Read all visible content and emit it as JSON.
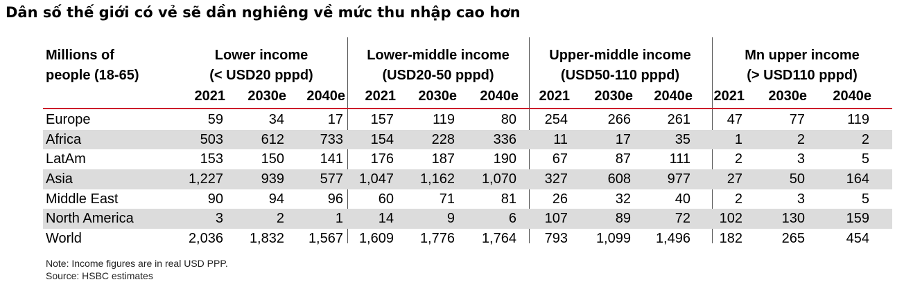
{
  "title": "Dân số thế giới có vẻ sẽ dần nghiêng về mức thu nhập cao hơn",
  "table": {
    "row_header": [
      "Millions of",
      "people (18-65)"
    ],
    "groups": [
      {
        "line1": "Lower income",
        "line2": "(< USD20 pppd)"
      },
      {
        "line1": "Lower-middle income",
        "line2": "(USD20-50 pppd)"
      },
      {
        "line1": "Upper-middle income",
        "line2": "(USD50-110 pppd)"
      },
      {
        "line1": "Mn upper income",
        "line2": "(> USD110 pppd)"
      }
    ],
    "years": [
      "2021",
      "2030e",
      "2040e"
    ],
    "rows": [
      {
        "label": "Europe",
        "values": [
          "59",
          "34",
          "17",
          "157",
          "119",
          "80",
          "254",
          "266",
          "261",
          "47",
          "77",
          "119"
        ]
      },
      {
        "label": "Africa",
        "values": [
          "503",
          "612",
          "733",
          "154",
          "228",
          "336",
          "11",
          "17",
          "35",
          "1",
          "2",
          "2"
        ]
      },
      {
        "label": "LatAm",
        "values": [
          "153",
          "150",
          "141",
          "176",
          "187",
          "190",
          "67",
          "87",
          "111",
          "2",
          "3",
          "5"
        ]
      },
      {
        "label": "Asia",
        "values": [
          "1,227",
          "939",
          "577",
          "1,047",
          "1,162",
          "1,070",
          "327",
          "608",
          "977",
          "27",
          "50",
          "164"
        ]
      },
      {
        "label": "Middle East",
        "values": [
          "90",
          "94",
          "96",
          "60",
          "71",
          "81",
          "26",
          "32",
          "40",
          "2",
          "3",
          "5"
        ]
      },
      {
        "label": "North America",
        "values": [
          "3",
          "2",
          "1",
          "14",
          "9",
          "6",
          "107",
          "89",
          "72",
          "102",
          "130",
          "159"
        ]
      },
      {
        "label": "World",
        "values": [
          "2,036",
          "1,832",
          "1,567",
          "1,609",
          "1,776",
          "1,764",
          "793",
          "1,099",
          "1,496",
          "182",
          "265",
          "454"
        ]
      }
    ]
  },
  "notes": {
    "note": "Note: Income figures are in real USD PPP.",
    "source": "Source: HSBC estimates"
  },
  "colors": {
    "rule": "#cc1d2b",
    "shade": "#dcdcdc"
  }
}
